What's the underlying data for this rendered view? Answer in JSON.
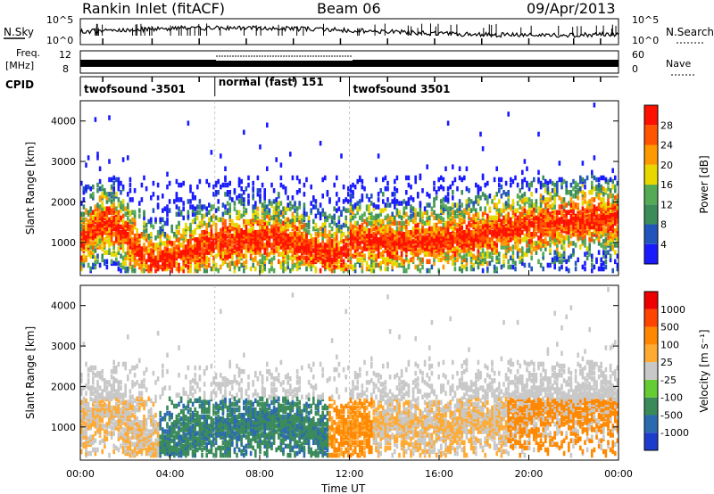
{
  "header": {
    "station": "Rankin Inlet (fitACF)",
    "beam": "Beam 06",
    "date": "09/Apr/2013"
  },
  "panels": {
    "noise": {
      "left_label": "N.Sky",
      "right_label": "N.Search",
      "left_ticks": [
        "10^5",
        "10^0"
      ],
      "right_ticks": [
        "10^5",
        "10^0"
      ]
    },
    "freq": {
      "left_label": "Freq.",
      "left_unit": "[MHz]",
      "right_label": "Nave",
      "left_ticks": [
        "12",
        "8"
      ],
      "right_ticks": [
        "60",
        "0"
      ]
    },
    "cpid": {
      "label": "CPID",
      "modes": [
        {
          "name": "twofsound -3501",
          "start_hour": 0,
          "end_hour": 6
        },
        {
          "name": "normal (fast) 151",
          "start_hour": 6,
          "end_hour": 12
        },
        {
          "name": "twofsound 3501",
          "start_hour": 12,
          "end_hour": 24
        }
      ]
    }
  },
  "chart_data": [
    {
      "type": "heatmap",
      "name": "power",
      "ylabel": "Slant Range [km]",
      "xlabel": "",
      "yticks": [
        "1000",
        "2000",
        "3000",
        "4000"
      ],
      "ylim": [
        180,
        4500
      ],
      "xlim_hours": [
        0,
        24
      ],
      "colorbar": {
        "label": "Power [dB]",
        "ticks": [
          "4",
          "8",
          "12",
          "16",
          "20",
          "24",
          "28"
        ],
        "colors": [
          "#1a1aff",
          "#2255bb",
          "#3c8c5a",
          "#55aa55",
          "#e8d800",
          "#ff9900",
          "#ff5500",
          "#ff1100"
        ]
      }
    },
    {
      "type": "heatmap",
      "name": "velocity",
      "ylabel": "Slant Range [km]",
      "xlabel": "Time UT",
      "xticks": [
        "00:00",
        "04:00",
        "08:00",
        "12:00",
        "16:00",
        "20:00",
        "00:00"
      ],
      "yticks": [
        "1000",
        "2000",
        "3000",
        "4000"
      ],
      "ylim": [
        180,
        4500
      ],
      "xlim_hours": [
        0,
        24
      ],
      "colorbar": {
        "label": "Velocity [m s⁻¹]",
        "ticks": [
          "1000",
          "500",
          "100",
          "25",
          "-25",
          "-100",
          "-500",
          "-1000"
        ],
        "colors": [
          "#1e3ccc",
          "#2c6ab0",
          "#3a8a5a",
          "#66cc33",
          "#c8c8c8",
          "#ffaa33",
          "#ff8800",
          "#ff4400",
          "#ee0000"
        ]
      }
    }
  ]
}
